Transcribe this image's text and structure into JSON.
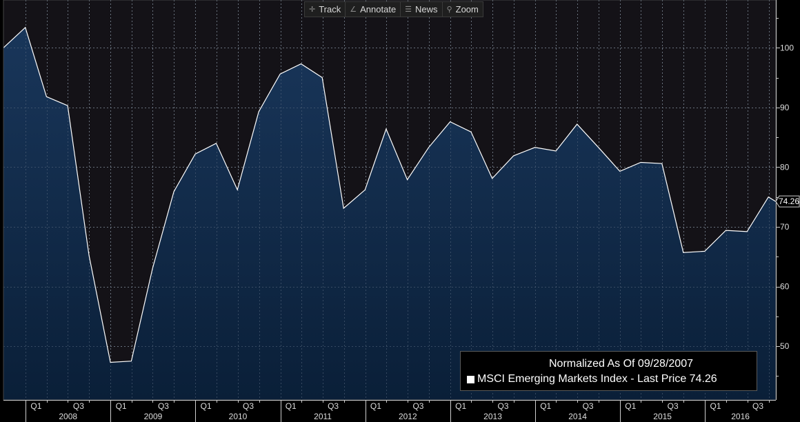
{
  "toolbar": {
    "track_label": "Track",
    "annotate_label": "Annotate",
    "news_label": "News",
    "zoom_label": "Zoom"
  },
  "legend": {
    "title": "Normalized As Of 09/28/2007",
    "entry": "MSCI Emerging Markets Index - Last Price 74.26"
  },
  "colors": {
    "background": "#000000",
    "plot_background": "#141217",
    "area_fill_top": "#19365a",
    "area_fill_bottom": "#0a1f38",
    "line": "#ffffff",
    "grid": "#8a8a8a"
  },
  "chart_data": {
    "type": "area",
    "title": "",
    "xlabel": "",
    "ylabel": "",
    "ylim": [
      41,
      108
    ],
    "y_ticks": [
      50,
      60,
      70,
      80,
      90,
      100
    ],
    "x_range": [
      "2007-09-28",
      "2016-11-01"
    ],
    "x_tick_labels": [
      "Q1",
      "Q3",
      "Q1",
      "Q3",
      "Q1",
      "Q3",
      "Q1",
      "Q3",
      "Q1",
      "Q3",
      "Q1",
      "Q3",
      "Q1",
      "Q3",
      "Q1",
      "Q3",
      "Q1",
      "Q3"
    ],
    "year_labels": [
      "2008",
      "2009",
      "2010",
      "2011",
      "2012",
      "2013",
      "2014",
      "2015",
      "2016"
    ],
    "last_price_label": "74.26",
    "grid": true,
    "legend_position": "bottom-right",
    "series": [
      {
        "name": "MSCI Emerging Markets Index - Last Price",
        "x": [
          "2007-09-28",
          "2007-12-31",
          "2008-03-31",
          "2008-06-30",
          "2008-09-30",
          "2008-12-31",
          "2009-03-31",
          "2009-06-30",
          "2009-09-30",
          "2009-12-31",
          "2010-03-31",
          "2010-06-30",
          "2010-09-30",
          "2010-12-31",
          "2011-03-31",
          "2011-06-30",
          "2011-09-30",
          "2011-12-31",
          "2012-03-31",
          "2012-06-30",
          "2012-09-30",
          "2012-12-31",
          "2013-03-31",
          "2013-06-30",
          "2013-09-30",
          "2013-12-31",
          "2014-03-31",
          "2014-06-30",
          "2014-09-30",
          "2014-12-31",
          "2015-03-31",
          "2015-06-30",
          "2015-09-30",
          "2015-12-31",
          "2016-03-31",
          "2016-06-30",
          "2016-09-30",
          "2016-10-31"
        ],
        "values": [
          100.0,
          103.4,
          91.8,
          90.3,
          65.2,
          47.3,
          47.5,
          63.0,
          75.9,
          82.2,
          84.0,
          76.2,
          89.3,
          95.6,
          97.3,
          95.0,
          73.1,
          76.2,
          86.4,
          77.9,
          83.3,
          87.6,
          85.9,
          78.1,
          81.9,
          83.3,
          82.7,
          87.2,
          83.3,
          79.3,
          80.8,
          80.6,
          65.7,
          65.9,
          69.4,
          69.2,
          75.0,
          74.26
        ]
      }
    ]
  }
}
